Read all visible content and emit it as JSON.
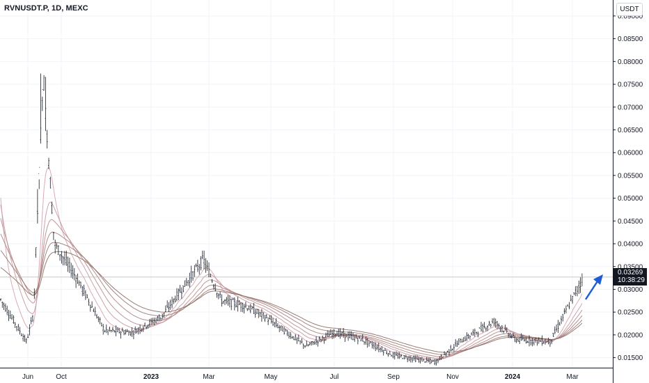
{
  "header": {
    "symbol_title": "RVNUSDT.P, 1D, MEXC",
    "currency_label": "USDT"
  },
  "price_marker": {
    "price": "0.03269",
    "countdown": "10:38:29",
    "tag_color": "#131722"
  },
  "colors": {
    "candles": "#131722",
    "ribbon_fast": "#d6a2ad",
    "ribbon_slow": "#8d6e63",
    "arrow": "#1e5bd8",
    "grid": "#f0f3fa",
    "axis_border": "#131722"
  },
  "chart_data": {
    "type": "candlestick",
    "title": "RVNUSDT.P, 1D, MEXC",
    "ylabel": "USDT",
    "ylim": [
      0.0128,
      0.0935
    ],
    "y_ticks": [
      "0.09000",
      "0.08500",
      "0.08000",
      "0.07500",
      "0.07000",
      "0.06500",
      "0.06000",
      "0.05500",
      "0.05000",
      "0.04500",
      "0.04000",
      "0.03500",
      "0.03000",
      "0.02500",
      "0.02000",
      "0.01500"
    ],
    "x_ticks": [
      "Jun",
      "Oct",
      "2023",
      "Mar",
      "May",
      "Jul",
      "Sep",
      "Nov",
      "2024",
      "Mar"
    ],
    "grid": true,
    "last_price": 0.03269,
    "price_path": [
      {
        "x": "Jun 2022",
        "price": 0.028
      },
      {
        "x": "Jul 2022",
        "price": 0.0185
      },
      {
        "x": "Aug 2022",
        "price": 0.0245
      },
      {
        "x": "late Aug 2022 peak",
        "price": 0.0775
      },
      {
        "x": "Sep 2022",
        "price": 0.04
      },
      {
        "x": "Oct 2022",
        "price": 0.0325
      },
      {
        "x": "Nov 2022",
        "price": 0.021
      },
      {
        "x": "Dec 2022",
        "price": 0.0205
      },
      {
        "x": "Jan 2023",
        "price": 0.024
      },
      {
        "x": "Feb 2023 peak",
        "price": 0.0365
      },
      {
        "x": "Mar 2023",
        "price": 0.0275
      },
      {
        "x": "Apr 2023",
        "price": 0.0265
      },
      {
        "x": "May 2023",
        "price": 0.024
      },
      {
        "x": "Jun 2023",
        "price": 0.0175
      },
      {
        "x": "Jul 2023",
        "price": 0.0205
      },
      {
        "x": "Aug 2023",
        "price": 0.019
      },
      {
        "x": "Sep 2023",
        "price": 0.0155
      },
      {
        "x": "Oct 2023",
        "price": 0.014
      },
      {
        "x": "Nov 2023",
        "price": 0.0185
      },
      {
        "x": "Dec 2023",
        "price": 0.023
      },
      {
        "x": "Jan 2024",
        "price": 0.019
      },
      {
        "x": "Feb 2024",
        "price": 0.0185
      },
      {
        "x": "Mar 2024",
        "price": 0.0327
      }
    ],
    "moving_average_ribbon": {
      "count": 6,
      "description": "EMA ribbon"
    }
  }
}
